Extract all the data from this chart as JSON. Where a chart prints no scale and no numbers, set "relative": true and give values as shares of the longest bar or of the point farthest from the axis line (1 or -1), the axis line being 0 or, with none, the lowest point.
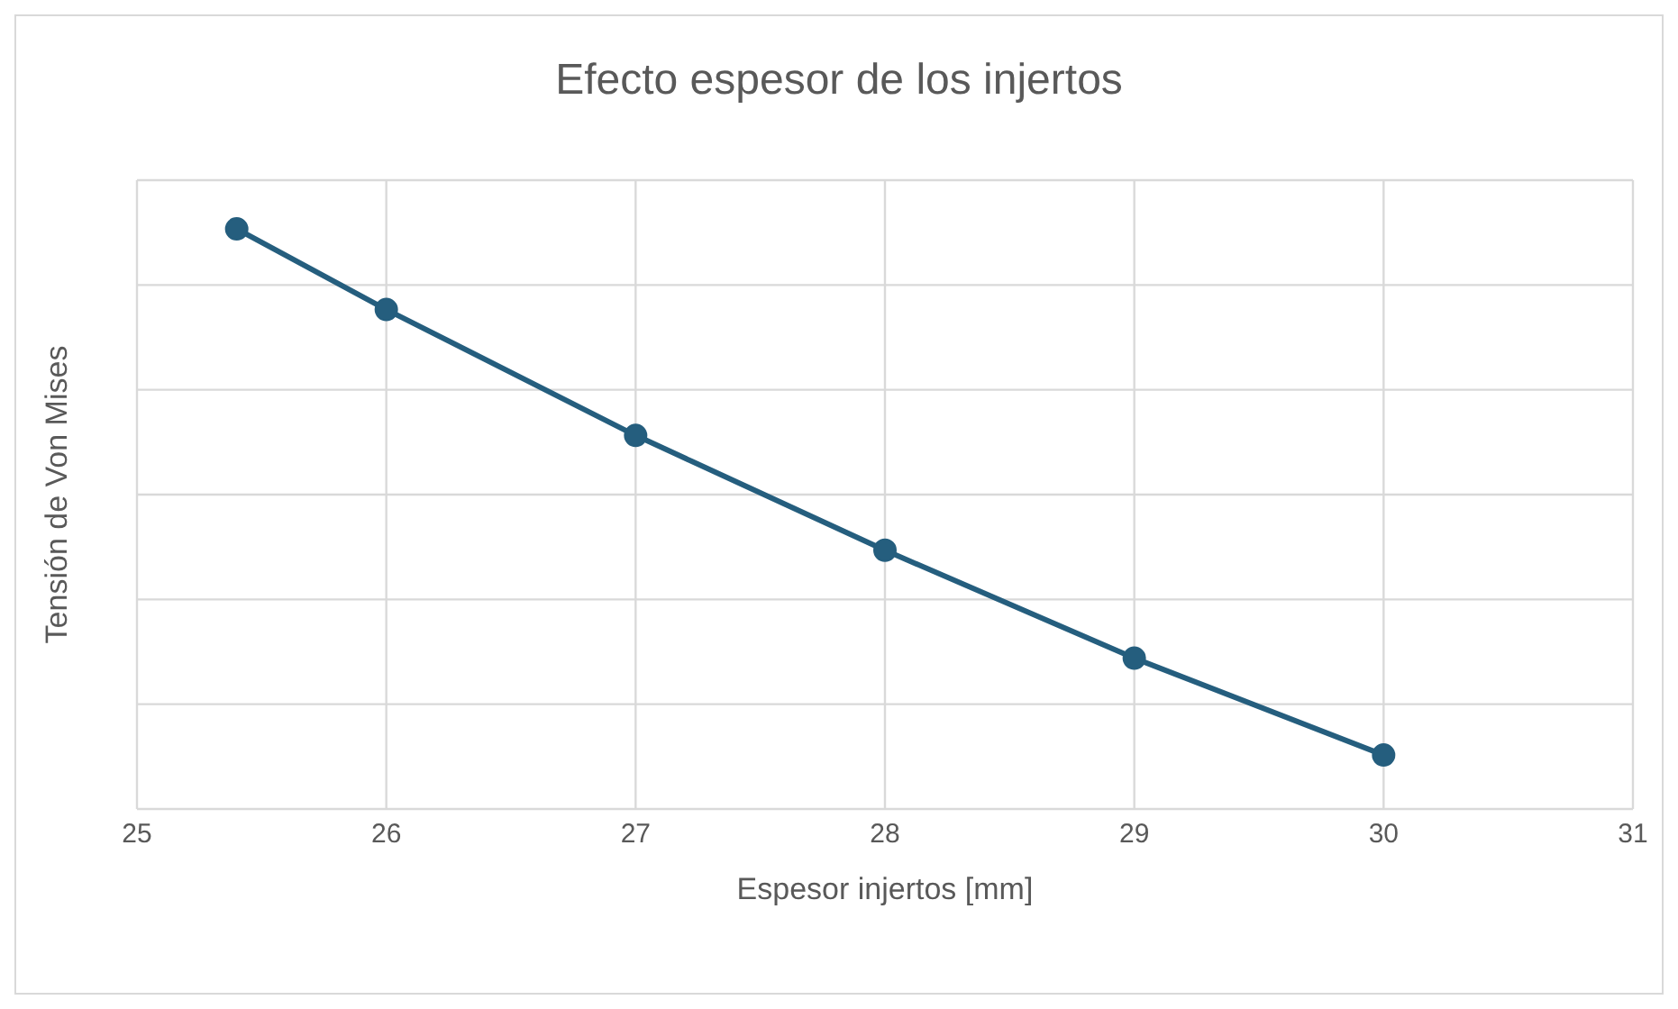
{
  "chart_data": {
    "type": "line",
    "title": "Efecto espesor de los injertos",
    "xlabel": "Espesor injertos [mm]",
    "ylabel": "Tensión de Von Mises",
    "relative": true,
    "x": [
      25.4,
      26,
      27,
      28,
      29,
      30
    ],
    "series": [
      {
        "color": "#255e7e",
        "values": [
          1,
          0.861,
          0.644,
          0.446,
          0.26,
          0.093
        ]
      }
    ],
    "xlim": [
      25,
      31
    ],
    "xticks": [
      25,
      26,
      27,
      28,
      29,
      30,
      31
    ],
    "grid": true,
    "legend": false,
    "marker": "circle",
    "line_style": "solid",
    "tick_labels": "x"
  }
}
